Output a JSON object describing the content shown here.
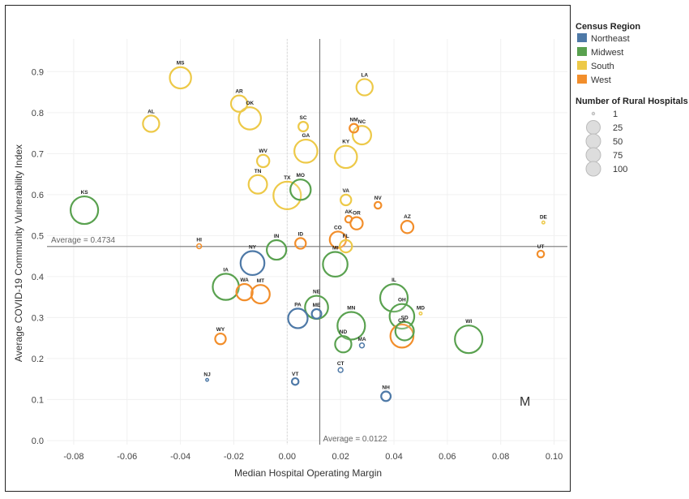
{
  "chart_data": {
    "type": "scatter",
    "xlabel": "Median Hospital Operating Margin",
    "ylabel": "Average COVID-19 Community Vulnerability Index",
    "xlim": [
      -0.09,
      0.105
    ],
    "ylim": [
      -0.01,
      0.96
    ],
    "xticks": [
      -0.08,
      -0.06,
      -0.04,
      -0.02,
      0.0,
      0.02,
      0.04,
      0.06,
      0.08,
      0.1
    ],
    "xtick_labels": [
      "-0.08",
      "-0.06",
      "-0.04",
      "-0.02",
      "0.00",
      "0.02",
      "0.04",
      "0.06",
      "0.08",
      "0.10"
    ],
    "yticks": [
      0.0,
      0.1,
      0.2,
      0.3,
      0.4,
      0.5,
      0.6,
      0.7,
      0.8,
      0.9
    ],
    "ytick_labels": [
      "0.0",
      "0.1",
      "0.2",
      "0.3",
      "0.4",
      "0.5",
      "0.6",
      "0.7",
      "0.8",
      "0.9"
    ],
    "reference_lines": {
      "x": {
        "value": 0.0122,
        "label": "Average = 0.0122"
      },
      "y": {
        "value": 0.4734,
        "label": "Average = 0.4734"
      }
    },
    "corner_mark": "M",
    "legend": {
      "color_title": "Census Region",
      "regions": [
        {
          "name": "Northeast",
          "color": "#4e79a7"
        },
        {
          "name": "Midwest",
          "color": "#59a14f"
        },
        {
          "name": "South",
          "color": "#edc948"
        },
        {
          "name": "West",
          "color": "#f28e2b"
        }
      ],
      "size_title": "Number of Rural Hospitals",
      "sizes": [
        1,
        25,
        50,
        75,
        100
      ],
      "size_labels": [
        "1",
        "25",
        "50",
        "75",
        "100"
      ],
      "placement": "right"
    },
    "points": [
      {
        "state": "MS",
        "x": -0.04,
        "y": 0.885,
        "region": "South",
        "hospitals": 60
      },
      {
        "state": "LA",
        "x": 0.029,
        "y": 0.862,
        "region": "South",
        "hospitals": 35
      },
      {
        "state": "AR",
        "x": -0.018,
        "y": 0.822,
        "region": "South",
        "hospitals": 35
      },
      {
        "state": "OK",
        "x": -0.014,
        "y": 0.786,
        "region": "South",
        "hospitals": 65
      },
      {
        "state": "AL",
        "x": -0.051,
        "y": 0.773,
        "region": "South",
        "hospitals": 35
      },
      {
        "state": "SC",
        "x": 0.006,
        "y": 0.766,
        "region": "South",
        "hospitals": 12
      },
      {
        "state": "NM",
        "x": 0.025,
        "y": 0.762,
        "region": "West",
        "hospitals": 10
      },
      {
        "state": "NC",
        "x": 0.028,
        "y": 0.745,
        "region": "South",
        "hospitals": 45
      },
      {
        "state": "GA",
        "x": 0.007,
        "y": 0.706,
        "region": "South",
        "hospitals": 70
      },
      {
        "state": "KY",
        "x": 0.022,
        "y": 0.692,
        "region": "South",
        "hospitals": 65
      },
      {
        "state": "WV",
        "x": -0.009,
        "y": 0.682,
        "region": "South",
        "hospitals": 20
      },
      {
        "state": "TN",
        "x": -0.011,
        "y": 0.625,
        "region": "South",
        "hospitals": 45
      },
      {
        "state": "MO",
        "x": 0.005,
        "y": 0.612,
        "region": "Midwest",
        "hospitals": 55
      },
      {
        "state": "TX",
        "x": 0.0,
        "y": 0.598,
        "region": "South",
        "hospitals": 100
      },
      {
        "state": "VA",
        "x": 0.022,
        "y": 0.587,
        "region": "South",
        "hospitals": 15
      },
      {
        "state": "NV",
        "x": 0.034,
        "y": 0.574,
        "region": "West",
        "hospitals": 6
      },
      {
        "state": "KS",
        "x": -0.076,
        "y": 0.562,
        "region": "Midwest",
        "hospitals": 100
      },
      {
        "state": "AK",
        "x": 0.023,
        "y": 0.54,
        "region": "West",
        "hospitals": 6
      },
      {
        "state": "OR",
        "x": 0.026,
        "y": 0.53,
        "region": "West",
        "hospitals": 20
      },
      {
        "state": "AZ",
        "x": 0.045,
        "y": 0.521,
        "region": "West",
        "hospitals": 20
      },
      {
        "state": "DE",
        "x": 0.096,
        "y": 0.532,
        "region": "South",
        "hospitals": 1
      },
      {
        "state": "CO",
        "x": 0.019,
        "y": 0.49,
        "region": "West",
        "hospitals": 35
      },
      {
        "state": "FL",
        "x": 0.022,
        "y": 0.474,
        "region": "South",
        "hospitals": 20
      },
      {
        "state": "ID",
        "x": 0.005,
        "y": 0.481,
        "region": "West",
        "hospitals": 15
      },
      {
        "state": "HI",
        "x": -0.033,
        "y": 0.474,
        "region": "West",
        "hospitals": 3
      },
      {
        "state": "IN",
        "x": -0.004,
        "y": 0.465,
        "region": "Midwest",
        "hospitals": 50
      },
      {
        "state": "UT",
        "x": 0.095,
        "y": 0.455,
        "region": "West",
        "hospitals": 6
      },
      {
        "state": "NY",
        "x": -0.013,
        "y": 0.433,
        "region": "Northeast",
        "hospitals": 75
      },
      {
        "state": "MI",
        "x": 0.018,
        "y": 0.43,
        "region": "Midwest",
        "hospitals": 80
      },
      {
        "state": "IA",
        "x": -0.023,
        "y": 0.375,
        "region": "Midwest",
        "hospitals": 90
      },
      {
        "state": "WA",
        "x": -0.016,
        "y": 0.362,
        "region": "West",
        "hospitals": 35
      },
      {
        "state": "MT",
        "x": -0.01,
        "y": 0.357,
        "region": "West",
        "hospitals": 45
      },
      {
        "state": "IL",
        "x": 0.04,
        "y": 0.348,
        "region": "Midwest",
        "hospitals": 100
      },
      {
        "state": "NE",
        "x": 0.011,
        "y": 0.325,
        "region": "Midwest",
        "hospitals": 70
      },
      {
        "state": "MD",
        "x": 0.05,
        "y": 0.31,
        "region": "South",
        "hospitals": 1
      },
      {
        "state": "ME",
        "x": 0.011,
        "y": 0.309,
        "region": "Northeast",
        "hospitals": 12
      },
      {
        "state": "OH",
        "x": 0.043,
        "y": 0.303,
        "region": "Midwest",
        "hospitals": 80
      },
      {
        "state": "PA",
        "x": 0.004,
        "y": 0.298,
        "region": "Northeast",
        "hospitals": 50
      },
      {
        "state": "MN",
        "x": 0.024,
        "y": 0.28,
        "region": "Midwest",
        "hospitals": 100
      },
      {
        "state": "CA",
        "x": 0.043,
        "y": 0.255,
        "region": "West",
        "hospitals": 70
      },
      {
        "state": "SD",
        "x": 0.044,
        "y": 0.267,
        "region": "Midwest",
        "hospitals": 45
      },
      {
        "state": "WY",
        "x": -0.025,
        "y": 0.248,
        "region": "West",
        "hospitals": 15
      },
      {
        "state": "WI",
        "x": 0.068,
        "y": 0.247,
        "region": "Midwest",
        "hospitals": 100
      },
      {
        "state": "ND",
        "x": 0.021,
        "y": 0.235,
        "region": "Midwest",
        "hospitals": 35
      },
      {
        "state": "MA",
        "x": 0.028,
        "y": 0.232,
        "region": "Northeast",
        "hospitals": 3
      },
      {
        "state": "CT",
        "x": 0.02,
        "y": 0.172,
        "region": "Northeast",
        "hospitals": 3
      },
      {
        "state": "NJ",
        "x": -0.03,
        "y": 0.148,
        "region": "Northeast",
        "hospitals": 1
      },
      {
        "state": "VT",
        "x": 0.003,
        "y": 0.144,
        "region": "Northeast",
        "hospitals": 6
      },
      {
        "state": "NH",
        "x": 0.037,
        "y": 0.108,
        "region": "Northeast",
        "hospitals": 12
      }
    ]
  }
}
